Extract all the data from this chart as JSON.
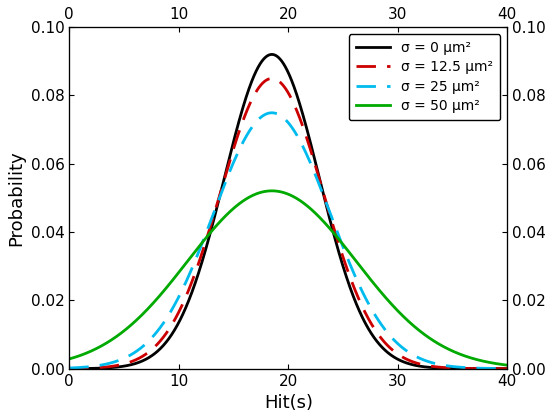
{
  "title": "",
  "xlabel": "Hit(s)",
  "ylabel": "Probability",
  "xlim": [
    0,
    40
  ],
  "ylim": [
    0.0,
    0.1
  ],
  "x_ticks": [
    0,
    10,
    20,
    30,
    40
  ],
  "y_ticks": [
    0.0,
    0.02,
    0.04,
    0.06,
    0.08,
    0.1
  ],
  "curves": [
    {
      "label": "σ = 0 μm²",
      "color": "#000000",
      "linestyle": "solid",
      "linewidth": 2.0,
      "mean": 18.5,
      "std": 4.34
    },
    {
      "label": "σ = 12.5 μm²",
      "color": "#cc0000",
      "linestyle": "dashed",
      "linewidth": 2.0,
      "mean": 18.5,
      "std": 4.7
    },
    {
      "label": "σ = 25 μm²",
      "color": "#00bbee",
      "linestyle": "dashed",
      "linewidth": 2.0,
      "mean": 18.5,
      "std": 5.33
    },
    {
      "label": "σ = 50 μm²",
      "color": "#00aa00",
      "linestyle": "solid",
      "linewidth": 2.0,
      "mean": 18.5,
      "std": 7.67
    }
  ],
  "legend_fontsize": 10,
  "axis_label_fontsize": 13,
  "tick_label_fontsize": 11,
  "background_color": "#ffffff"
}
